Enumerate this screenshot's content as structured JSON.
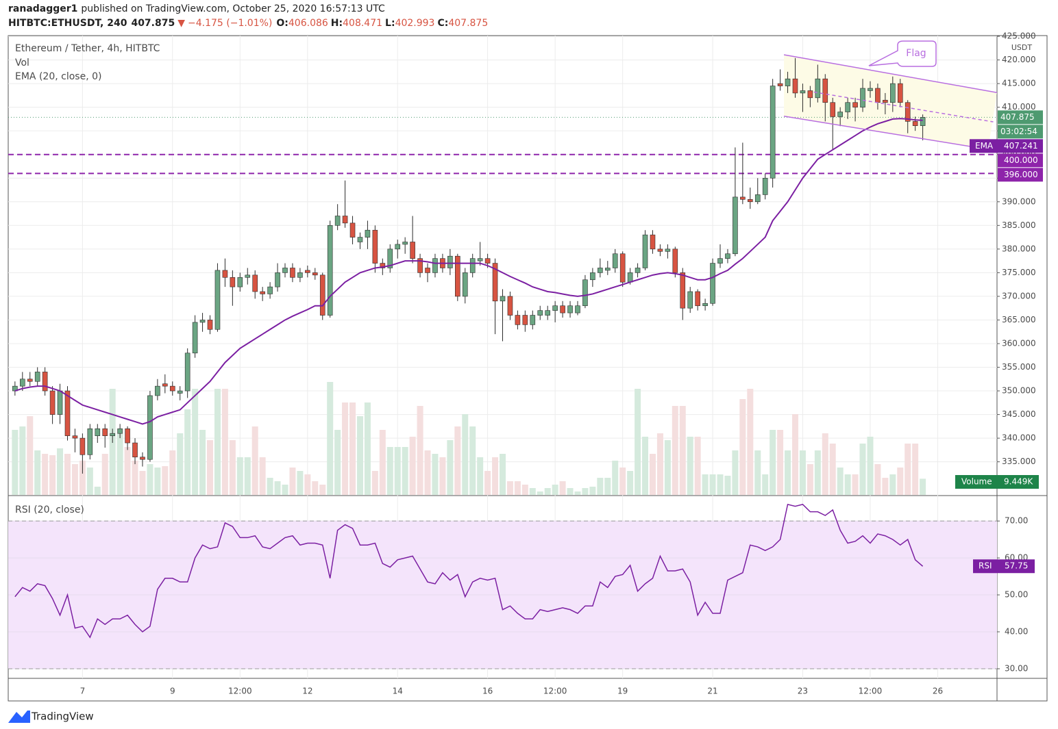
{
  "header": {
    "author": "ranadagger1",
    "published": "published on TradingView.com, October 25, 2020 16:57:13 UTC",
    "symbol": "HITBTC:ETHUSDT, 240",
    "last": "407.875",
    "arrow": "▼",
    "change": "−4.175 (−1.01%)",
    "ohlc": [
      {
        "label": "O:",
        "value": "406.086"
      },
      {
        "label": "H:",
        "value": "408.471"
      },
      {
        "label": "L:",
        "value": "402.993"
      },
      {
        "label": "C:",
        "value": "407.875"
      }
    ]
  },
  "chart_data": [
    {
      "type": "candlestick",
      "title": "Ethereum / Tether, 4h, HITBTC",
      "currency": "USDT",
      "open": [
        350,
        351,
        352.5,
        352,
        354,
        350,
        345,
        350,
        340.5,
        340,
        336.5,
        340.5,
        342,
        340.5,
        341,
        342,
        339,
        336,
        335.5,
        349,
        351.5,
        351,
        349.5,
        350,
        358,
        364.5,
        365,
        363,
        375.5,
        374,
        372,
        374,
        374.5,
        371,
        370.5,
        372,
        375,
        376,
        374,
        375.5,
        375,
        374.5,
        366,
        385,
        387,
        385.5,
        381.5,
        382.5,
        384,
        377,
        376,
        380,
        381,
        381.5,
        378,
        376,
        375,
        378,
        376,
        378.5,
        370,
        375,
        377.5,
        378,
        377,
        369,
        370,
        366,
        366,
        364,
        366,
        366,
        367,
        368,
        366.5,
        366.5,
        368,
        373.5,
        375,
        375.5,
        376,
        379,
        373,
        375,
        376,
        383,
        380,
        379.5,
        380,
        375,
        367.5,
        371,
        368,
        368.5,
        377,
        378,
        379,
        391,
        390.5,
        390,
        391.5,
        395,
        415,
        414.5,
        416,
        413,
        413.5,
        412,
        416,
        411,
        408,
        409,
        411,
        410,
        413.5,
        414,
        411.5,
        411,
        415,
        411,
        407,
        406.086
      ],
      "high": [
        352,
        354,
        354,
        355,
        355,
        351,
        351.5,
        351,
        342,
        341,
        343,
        343,
        343,
        342,
        343,
        342.5,
        340,
        337,
        350,
        352.5,
        353.5,
        352,
        351,
        359,
        366,
        366.5,
        366,
        377,
        378,
        375.5,
        375,
        376,
        375.5,
        372,
        373,
        377,
        377,
        377,
        376,
        376.5,
        376,
        375,
        386,
        389.5,
        394.5,
        387,
        383.5,
        386,
        385,
        378,
        381,
        382,
        382.5,
        387,
        379,
        377,
        379,
        379,
        380,
        379,
        376,
        379,
        381.5,
        379,
        378,
        371.5,
        371,
        367,
        367,
        367,
        368,
        368,
        369,
        369,
        369,
        369,
        374.5,
        376,
        378,
        377.5,
        380,
        379.5,
        376,
        377,
        384,
        384,
        381,
        381,
        380.5,
        376,
        372,
        371.5,
        369.5,
        378,
        381,
        380,
        401.5,
        402.5,
        393,
        395,
        396,
        416,
        418,
        417.5,
        420.4,
        415,
        414.5,
        419,
        417,
        412,
        410,
        412,
        412,
        416,
        415.5,
        415,
        413,
        416.5,
        416,
        411.5,
        408,
        408.471
      ],
      "low": [
        349,
        350,
        351,
        351,
        349,
        343,
        343,
        339.5,
        337,
        332.5,
        335.5,
        339,
        338,
        339,
        340,
        337.5,
        334.5,
        334,
        335,
        348,
        349.5,
        349,
        348,
        348.5,
        357,
        362.5,
        362,
        362.5,
        372,
        368,
        371,
        372.5,
        369.5,
        369,
        369.5,
        371,
        374,
        373,
        373,
        374,
        373.5,
        365,
        365.5,
        384,
        384.5,
        381,
        380,
        380,
        375,
        374.5,
        375,
        378,
        379,
        377,
        374,
        373,
        374,
        375,
        374.5,
        369,
        368.5,
        374,
        376.5,
        376,
        362,
        360.5,
        365,
        363,
        362.5,
        363,
        365,
        365,
        364.5,
        365.5,
        365.5,
        366,
        367.5,
        372,
        374,
        374.5,
        375,
        372,
        372.5,
        374,
        375.5,
        379,
        378.5,
        378,
        374,
        365,
        366.5,
        367,
        367,
        368,
        376,
        377,
        378.5,
        389.5,
        388.5,
        389.5,
        390.5,
        393,
        413.5,
        413,
        412,
        409,
        410,
        411,
        407,
        401,
        406,
        407.5,
        407,
        409,
        412,
        409.5,
        408.5,
        409,
        410,
        404.5,
        405,
        402.993
      ],
      "close": [
        351,
        352.5,
        352,
        354,
        350,
        345,
        350,
        340.5,
        340,
        336.5,
        342,
        342,
        340.5,
        341,
        342,
        339,
        336,
        335.5,
        349,
        351,
        351,
        350,
        350,
        358,
        364.5,
        365,
        363,
        375.5,
        374,
        372,
        374,
        374.5,
        371,
        370.5,
        372,
        375,
        376,
        374,
        375,
        375,
        374.5,
        366,
        385,
        387,
        385.5,
        382.5,
        382.5,
        384,
        377,
        376,
        380,
        381,
        381.5,
        378,
        375,
        375,
        378,
        376,
        378.5,
        370,
        375,
        378,
        378,
        377,
        369,
        370,
        366,
        364,
        364,
        366,
        367,
        367,
        368,
        366.5,
        368,
        368,
        373.5,
        375,
        376,
        376,
        379,
        373,
        375,
        376,
        383,
        380,
        379.5,
        380,
        375,
        367.5,
        371,
        368,
        368.5,
        377,
        378,
        379,
        391,
        390.5,
        390,
        391.5,
        395,
        414.5,
        414.5,
        416,
        413,
        413.5,
        412,
        416,
        411,
        408,
        409,
        411,
        410,
        414,
        414,
        411,
        411,
        415,
        411,
        407,
        406.086,
        407.875
      ],
      "up_color": "#6ba583",
      "down_color": "#d75442",
      "volume": {
        "name": "Vol",
        "label": "Volume",
        "last_label": "9.449K",
        "up_color": "#d5eadd",
        "down_color": "#f4dede",
        "box_color": "#1e8449",
        "ylim": [
          0,
          268400
        ],
        "values": [
          38000,
          40000,
          46000,
          26000,
          24000,
          23200,
          27200,
          24000,
          18000,
          20000,
          16000,
          4800,
          24000,
          62000,
          36000,
          28000,
          20000,
          14000,
          18000,
          16000,
          16800,
          26000,
          36000,
          50000,
          62000,
          38000,
          32000,
          62000,
          62000,
          32000,
          22000,
          22000,
          40000,
          22000,
          10000,
          8000,
          6000,
          16000,
          14000,
          12000,
          8000,
          6000,
          66000,
          38000,
          54000,
          54000,
          46000,
          54000,
          14000,
          38000,
          28000,
          28000,
          28000,
          34000,
          52000,
          26000,
          24000,
          22000,
          32000,
          40000,
          47200,
          40000,
          22000,
          14000,
          22000,
          24000,
          8000,
          8000,
          6000,
          4000,
          2000,
          4000,
          6000,
          8000,
          4000,
          2000,
          4000,
          4800,
          10000,
          10000,
          20000,
          16000,
          14000,
          62000,
          34000,
          24000,
          36000,
          32000,
          52000,
          52000,
          34000,
          34000,
          12000,
          12000,
          12000,
          11200,
          26000,
          56000,
          62000,
          26000,
          12000,
          38000,
          38000,
          26000,
          47200,
          26000,
          18000,
          26000,
          36000,
          30000,
          16000,
          12000,
          12000,
          30000,
          34000,
          18000,
          10000,
          12000,
          16000,
          30000,
          30000,
          9449
        ]
      },
      "ema": {
        "title": "EMA (20, close, 0)",
        "name": "EMA",
        "last_label": "407.241",
        "color": "#7b1fa2",
        "values": [
          350,
          350.5,
          350.8,
          351,
          351,
          350.5,
          350,
          349,
          348,
          347,
          346.5,
          346,
          345.5,
          345,
          344.5,
          344,
          343.5,
          343,
          343.5,
          344.5,
          345,
          345.5,
          346,
          347.5,
          349,
          350.5,
          352,
          354,
          356,
          357.5,
          359,
          360,
          361,
          362,
          363,
          364,
          365,
          365.8,
          366.5,
          367.2,
          368,
          368,
          370,
          371.5,
          373,
          374,
          375,
          375.5,
          376,
          376.2,
          376.5,
          377,
          377.5,
          377.5,
          377.5,
          377.3,
          377,
          377,
          377,
          377,
          377,
          377,
          377,
          376.5,
          375.8,
          375,
          374.2,
          373.5,
          372.8,
          372,
          371.5,
          371,
          370.8,
          370.5,
          370.2,
          370,
          370.2,
          370.5,
          371,
          371.5,
          372,
          372.5,
          373,
          373.5,
          374,
          374.5,
          374.8,
          375,
          374.8,
          374.5,
          374,
          373.5,
          373.5,
          374,
          374.8,
          375.5,
          376.8,
          378,
          379.5,
          381,
          382.5,
          386,
          388,
          390,
          392.5,
          395,
          397,
          399,
          400,
          401,
          402,
          403,
          404,
          405,
          405.8,
          406.5,
          407,
          407.5,
          407.6,
          407.5,
          407.3,
          407.241
        ]
      },
      "last_price_label": "407.875",
      "countdown": "03:02:54",
      "last_color": "#4e9a70",
      "hlines": [
        {
          "value": 400,
          "label": "400.000"
        },
        {
          "value": 396,
          "label": "396.000"
        }
      ],
      "hline_color": "#8e24aa",
      "flag": {
        "label": "Flag",
        "color": "#b86ee0",
        "fill": "#fdfbe6",
        "upper": {
          "x": [
            102.5,
            130.9
          ],
          "y": [
            421.1,
            413.1
          ]
        },
        "lower": {
          "x": [
            102.5,
            129.7
          ],
          "y": [
            408.1,
            401.1
          ]
        },
        "middle": {
          "x": [
            106.5,
            130.4
          ],
          "y": [
            413.2,
            406.9
          ]
        }
      },
      "xlim": [
        -0.9,
        130.9
      ],
      "xticks": [
        {
          "value": 9,
          "label": "7"
        },
        {
          "value": 21,
          "label": "9"
        },
        {
          "value": 30,
          "label": "12:00"
        },
        {
          "value": 39,
          "label": "12"
        },
        {
          "value": 51,
          "label": "14"
        },
        {
          "value": 63,
          "label": "16"
        },
        {
          "value": 72,
          "label": "12:00"
        },
        {
          "value": 81,
          "label": "19"
        },
        {
          "value": 93,
          "label": "21"
        },
        {
          "value": 105,
          "label": "23"
        },
        {
          "value": 114,
          "label": "12:00"
        },
        {
          "value": 123,
          "label": "26"
        }
      ],
      "ylim": [
        328,
        425.15
      ],
      "yticks": [
        {
          "value": 335,
          "label": "335.000"
        },
        {
          "value": 340,
          "label": "340.000"
        },
        {
          "value": 345,
          "label": "345.000"
        },
        {
          "value": 350,
          "label": "350.000"
        },
        {
          "value": 355,
          "label": "355.000"
        },
        {
          "value": 360,
          "label": "360.000"
        },
        {
          "value": 365,
          "label": "365.000"
        },
        {
          "value": 370,
          "label": "370.000"
        },
        {
          "value": 375,
          "label": "375.000"
        },
        {
          "value": 380,
          "label": "380.000"
        },
        {
          "value": 385,
          "label": "385.000"
        },
        {
          "value": 390,
          "label": "390.000"
        },
        {
          "value": 395,
          "label": "395.000"
        },
        {
          "value": 400,
          "label": "400.000"
        },
        {
          "value": 405,
          "label": "405.000"
        },
        {
          "value": 410,
          "label": "410.000"
        },
        {
          "value": 415,
          "label": "415.000"
        },
        {
          "value": 420,
          "label": "420.000"
        },
        {
          "value": 425,
          "label": "425.000"
        }
      ],
      "grid": true
    },
    {
      "type": "line",
      "title": "RSI (20, close)",
      "name": "RSI",
      "last_label": "57.75",
      "color": "#7b1fa2",
      "band": [
        30,
        70
      ],
      "band_color": "#f4e4fb",
      "values": [
        49.5,
        52,
        51,
        53,
        52.5,
        49,
        44.5,
        50,
        41,
        41.5,
        38.5,
        43.5,
        42,
        43.5,
        43.5,
        44.5,
        42,
        40,
        41.5,
        51.5,
        54.5,
        54.5,
        53.5,
        53.5,
        60,
        63.5,
        62.5,
        63,
        69.5,
        68.5,
        65.5,
        65.5,
        66,
        63,
        62.5,
        64,
        65.5,
        66,
        63.5,
        64,
        64,
        63.5,
        54.5,
        67.5,
        69,
        68,
        63.5,
        63.5,
        64,
        58.5,
        57.5,
        59.5,
        60,
        60.5,
        57,
        53.5,
        53,
        56,
        54,
        55.5,
        49.5,
        53.5,
        54.5,
        54,
        54.5,
        46,
        47,
        45,
        43.5,
        43.5,
        46,
        45.5,
        46,
        46.5,
        46,
        45,
        47,
        47,
        53.5,
        52,
        55,
        55.5,
        58,
        51,
        53,
        54.5,
        60.5,
        56.5,
        56.5,
        57,
        53.5,
        44.5,
        48,
        45,
        45,
        54,
        55,
        56,
        63.5,
        63,
        62,
        63,
        65,
        74.5,
        74,
        74.5,
        72.5,
        72.5,
        71.5,
        73,
        67.5,
        64,
        64.5,
        66,
        64,
        66.5,
        66,
        65,
        63.5,
        65,
        59.5,
        57.75
      ],
      "ylim": [
        27.4,
        76.7
      ],
      "yticks": [
        {
          "value": 30,
          "label": "30.00"
        },
        {
          "value": 40,
          "label": "40.00"
        },
        {
          "value": 50,
          "label": "50.00"
        },
        {
          "value": 60,
          "label": "60.00"
        },
        {
          "value": 70,
          "label": "70.00"
        }
      ],
      "grid": true
    }
  ],
  "footer": {
    "brand": "TradingView"
  }
}
